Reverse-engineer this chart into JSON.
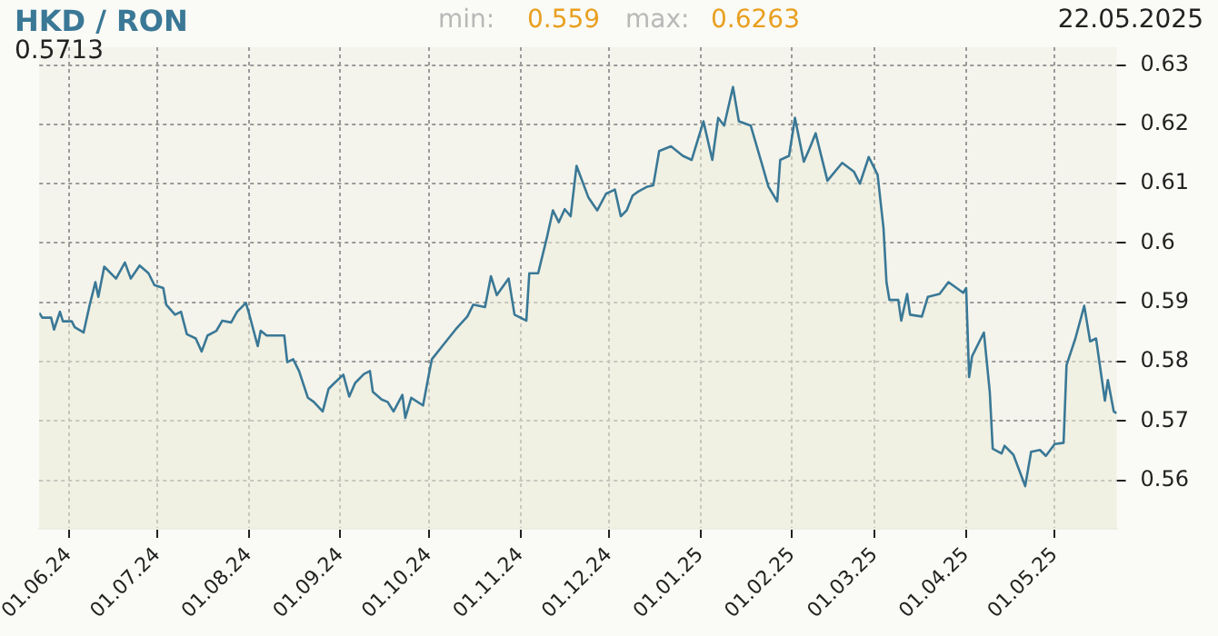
{
  "chart_data": {
    "type": "area",
    "title": "HKD / RON",
    "annotations": [
      "min:",
      "0.559",
      "max:",
      "0.6263",
      "22.05.2025",
      "0.5713"
    ],
    "x": [
      "2024-05-22",
      "2024-05-23",
      "2024-05-26",
      "2024-05-27",
      "2024-05-29",
      "2024-05-30",
      "2024-06-02",
      "2024-06-03",
      "2024-06-06",
      "2024-06-08",
      "2024-06-10",
      "2024-06-11",
      "2024-06-13",
      "2024-06-17",
      "2024-06-20",
      "2024-06-22",
      "2024-06-25",
      "2024-06-28",
      "2024-06-30",
      "2024-07-03",
      "2024-07-04",
      "2024-07-07",
      "2024-07-09",
      "2024-07-11",
      "2024-07-14",
      "2024-07-16",
      "2024-07-18",
      "2024-07-21",
      "2024-07-23",
      "2024-07-26",
      "2024-07-28",
      "2024-07-31",
      "2024-08-01",
      "2024-08-04",
      "2024-08-05",
      "2024-08-07",
      "2024-08-13",
      "2024-08-14",
      "2024-08-16",
      "2024-08-18",
      "2024-08-21",
      "2024-08-23",
      "2024-08-26",
      "2024-08-28",
      "2024-08-30",
      "2024-09-02",
      "2024-09-04",
      "2024-09-06",
      "2024-09-09",
      "2024-09-11",
      "2024-09-12",
      "2024-09-15",
      "2024-09-17",
      "2024-09-19",
      "2024-09-22",
      "2024-09-23",
      "2024-09-25",
      "2024-09-29",
      "2024-10-01",
      "2024-10-02",
      "2024-10-06",
      "2024-10-10",
      "2024-10-14",
      "2024-10-16",
      "2024-10-20",
      "2024-10-22",
      "2024-10-24",
      "2024-10-28",
      "2024-10-30",
      "2024-11-03",
      "2024-11-04",
      "2024-11-07",
      "2024-11-10",
      "2024-11-12",
      "2024-11-14",
      "2024-11-16",
      "2024-11-18",
      "2024-11-20",
      "2024-11-24",
      "2024-11-27",
      "2024-11-30",
      "2024-12-03",
      "2024-12-05",
      "2024-12-07",
      "2024-12-09",
      "2024-12-11",
      "2024-12-14",
      "2024-12-16",
      "2024-12-18",
      "2024-12-22",
      "2024-12-26",
      "2024-12-29",
      "2025-01-02",
      "2025-01-05",
      "2025-01-07",
      "2025-01-09",
      "2025-01-12",
      "2025-01-14",
      "2025-01-18",
      "2025-01-22",
      "2025-01-24",
      "2025-01-27",
      "2025-01-28",
      "2025-01-31",
      "2025-02-02",
      "2025-02-05",
      "2025-02-07",
      "2025-02-09",
      "2025-02-13",
      "2025-02-18",
      "2025-02-22",
      "2025-02-24",
      "2025-02-27",
      "2025-03-02",
      "2025-03-04",
      "2025-03-05",
      "2025-03-06",
      "2025-03-09",
      "2025-03-10",
      "2025-03-12",
      "2025-03-13",
      "2025-03-17",
      "2025-03-19",
      "2025-03-23",
      "2025-03-26",
      "2025-03-31",
      "2025-04-01",
      "2025-04-02",
      "2025-04-03",
      "2025-04-07",
      "2025-04-09",
      "2025-04-10",
      "2025-04-13",
      "2025-04-14",
      "2025-04-17",
      "2025-04-21",
      "2025-04-23",
      "2025-04-26",
      "2025-04-28",
      "2025-05-01",
      "2025-05-04",
      "2025-05-05",
      "2025-05-08",
      "2025-05-11",
      "2025-05-13",
      "2025-05-15",
      "2025-05-18",
      "2025-05-19",
      "2025-05-21",
      "2025-05-22"
    ],
    "series": [
      {
        "color": "#3a7896",
        "values": [
          0.5882,
          0.5874,
          0.5874,
          0.5854,
          0.5884,
          0.5868,
          0.5868,
          0.5858,
          0.5849,
          0.5894,
          0.5934,
          0.5909,
          0.596,
          0.594,
          0.5967,
          0.594,
          0.5962,
          0.5949,
          0.5929,
          0.5924,
          0.5896,
          0.5879,
          0.5884,
          0.5846,
          0.5839,
          0.5817,
          0.5844,
          0.5852,
          0.5869,
          0.5866,
          0.5884,
          0.5899,
          0.5882,
          0.5826,
          0.5852,
          0.5844,
          0.5844,
          0.5799,
          0.5804,
          0.5784,
          0.5739,
          0.5732,
          0.5716,
          0.5754,
          0.5764,
          0.5778,
          0.5741,
          0.5764,
          0.5779,
          0.5784,
          0.5749,
          0.5736,
          0.5732,
          0.5716,
          0.5744,
          0.5705,
          0.5739,
          0.5726,
          0.5779,
          0.5804,
          0.5829,
          0.5854,
          0.5876,
          0.5896,
          0.5892,
          0.5944,
          0.5912,
          0.594,
          0.5879,
          0.5869,
          0.5949,
          0.5949,
          0.601,
          0.6055,
          0.6035,
          0.6057,
          0.6045,
          0.613,
          0.6077,
          0.6055,
          0.6083,
          0.609,
          0.6045,
          0.6055,
          0.608,
          0.6087,
          0.6095,
          0.6097,
          0.6155,
          0.6163,
          0.6147,
          0.614,
          0.6205,
          0.614,
          0.6211,
          0.6198,
          0.6263,
          0.6205,
          0.6198,
          0.613,
          0.6095,
          0.607,
          0.614,
          0.6147,
          0.6211,
          0.6137,
          0.616,
          0.6185,
          0.6105,
          0.6135,
          0.612,
          0.61,
          0.6145,
          0.6115,
          0.6025,
          0.5934,
          0.5904,
          0.5904,
          0.5869,
          0.5914,
          0.5879,
          0.5876,
          0.5909,
          0.5914,
          0.5934,
          0.5916,
          0.5924,
          0.5774,
          0.5809,
          0.5849,
          0.5749,
          0.5653,
          0.5645,
          0.5658,
          0.5643,
          0.559,
          0.5648,
          0.5651,
          0.5641,
          0.5661,
          0.5663,
          0.5794,
          0.5839,
          0.5894,
          0.5834,
          0.5839,
          0.5734,
          0.5769,
          0.5716,
          0.5713
        ]
      }
    ],
    "xlim": [
      "2024-05-22",
      "2025-05-22"
    ],
    "xticks": [
      {
        "value": "2024-06-01",
        "label": "01.06.24"
      },
      {
        "value": "2024-07-01",
        "label": "01.07.24"
      },
      {
        "value": "2024-08-01",
        "label": "01.08.24"
      },
      {
        "value": "2024-09-01",
        "label": "01.09.24"
      },
      {
        "value": "2024-10-01",
        "label": "01.10.24"
      },
      {
        "value": "2024-11-01",
        "label": "01.11.24"
      },
      {
        "value": "2024-12-01",
        "label": "01.12.24"
      },
      {
        "value": "2025-01-01",
        "label": "01.01.25"
      },
      {
        "value": "2025-02-01",
        "label": "01.02.25"
      },
      {
        "value": "2025-03-01",
        "label": "01.03.25"
      },
      {
        "value": "2025-04-01",
        "label": "01.04.25"
      },
      {
        "value": "2025-05-01",
        "label": "01.05.25"
      }
    ],
    "ylim": [
      0.5518,
      0.633
    ],
    "yticks": [
      0.56,
      0.57,
      0.58,
      0.59,
      0.6,
      0.61,
      0.62,
      0.63
    ],
    "grid": true,
    "legend": false,
    "marker": "none",
    "line_style": "solid"
  }
}
